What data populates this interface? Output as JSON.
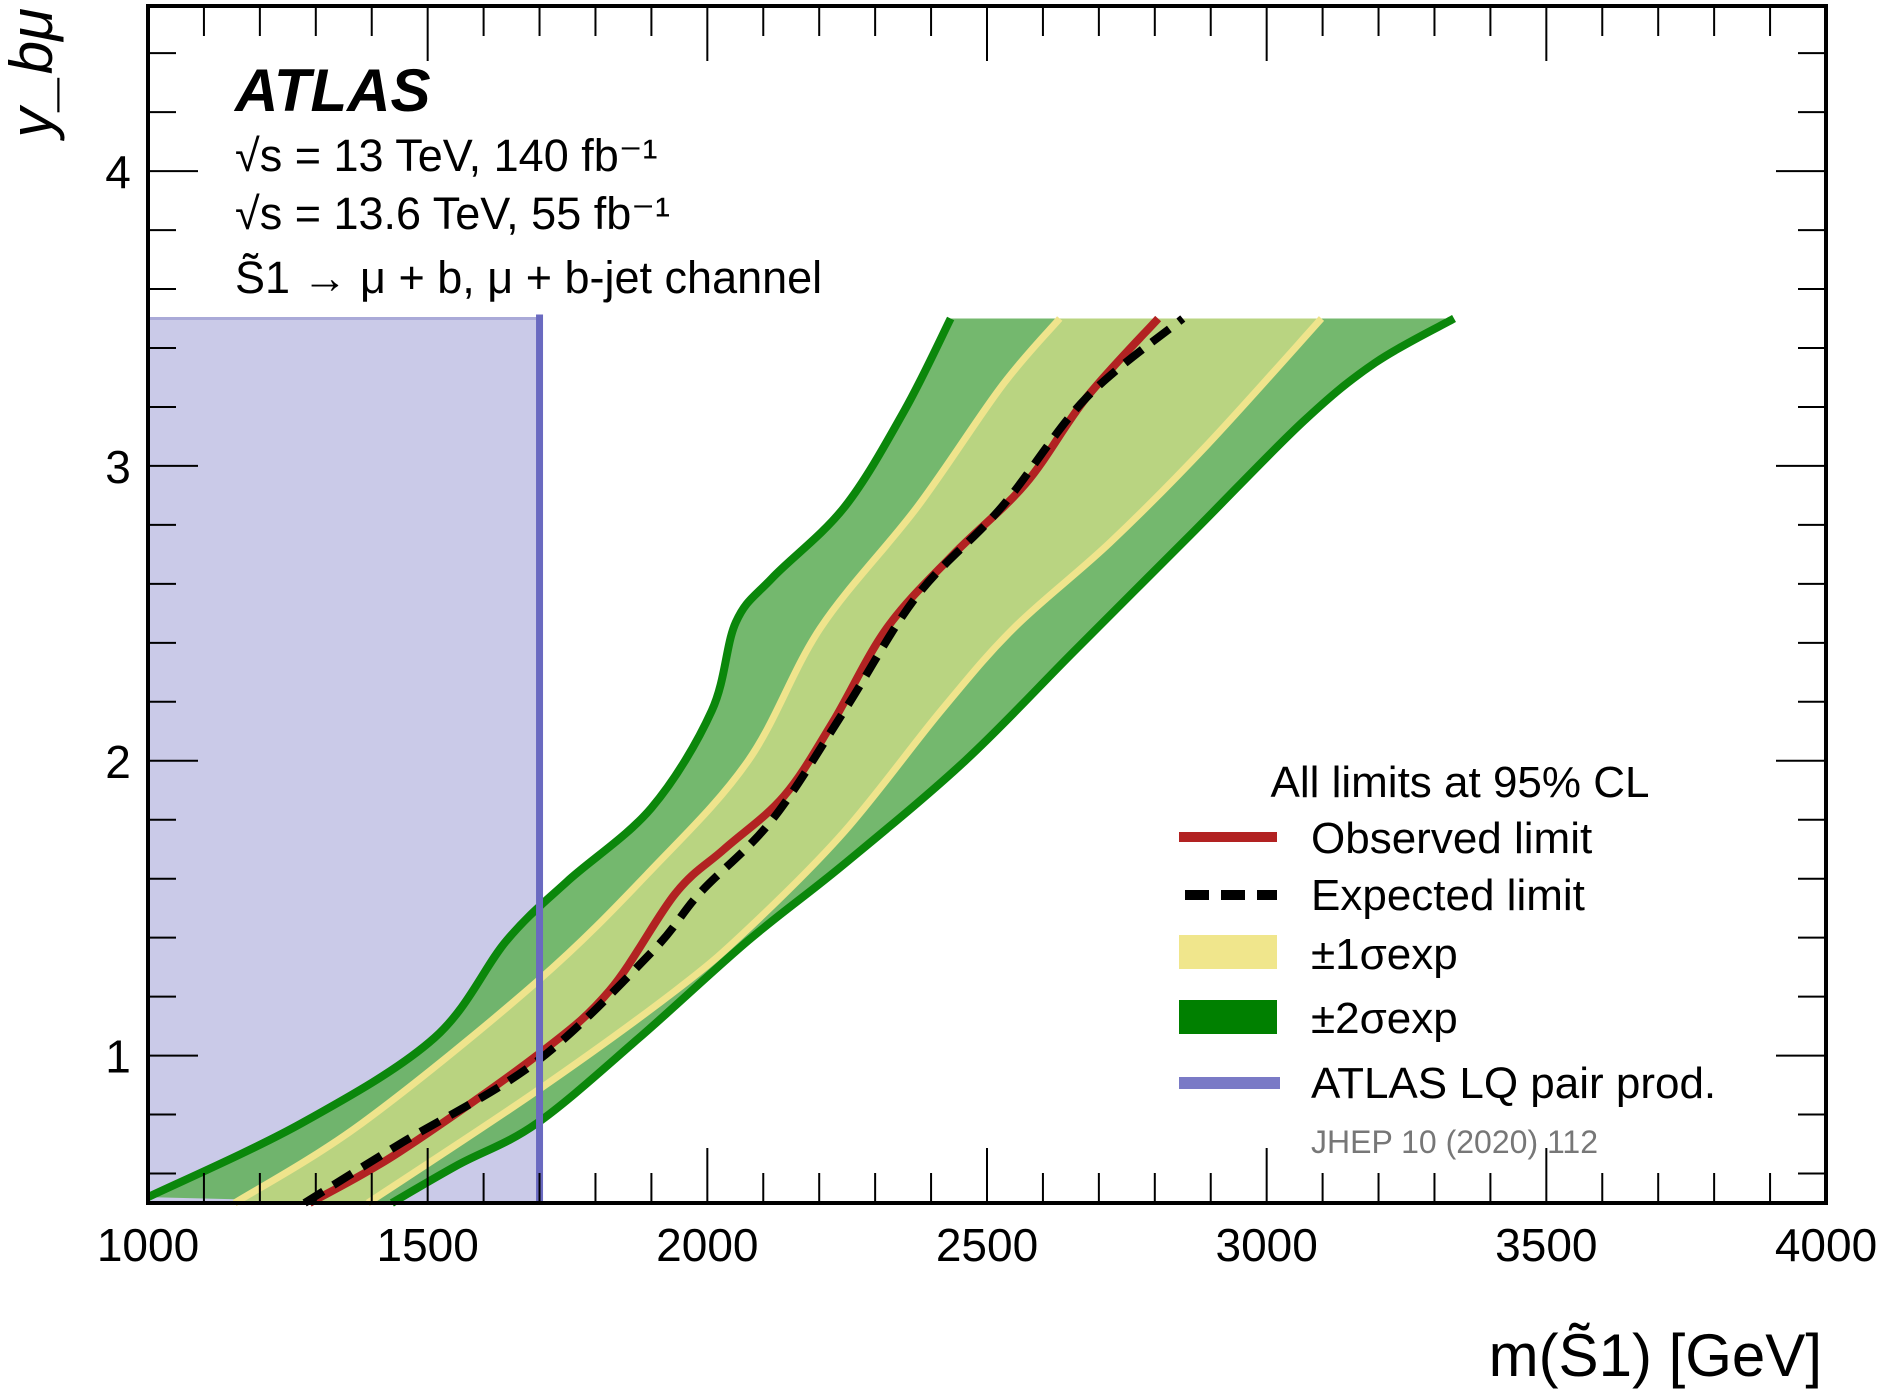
{
  "chart_data": {
    "type": "line",
    "xlabel": "m(S̃1) [GeV]",
    "ylabel": "y_bμ",
    "xlim": [
      1000,
      4000
    ],
    "ylim": [
      0.5,
      4.56
    ],
    "x_ticks": [
      "1000",
      "1500",
      "2000",
      "2500",
      "3000",
      "3500",
      "4000"
    ],
    "y_ticks": [
      "1",
      "2",
      "3",
      "4"
    ],
    "grid": false,
    "legend_placement": "bottom-right",
    "annotations": {
      "experiment": "ATLAS",
      "line1": "√s = 13 TeV, 140 fb⁻¹",
      "line2": "√s = 13.6 TeV, 55 fb⁻¹",
      "line3": "S̃1 → μ + b, μ + b-jet channel"
    },
    "legend": {
      "title": "All limits at 95% CL",
      "observed": "Observed limit",
      "expected": "Expected limit",
      "sigma1": "±1σexp",
      "sigma2": "±2σexp",
      "lq": "ATLAS LQ pair prod.",
      "reference": "JHEP 10 (2020) 112"
    },
    "colors": {
      "observed": "#b22222",
      "expected": "#000000",
      "sigma1_fill": "#bdd582",
      "sigma1_edge": "#efe48c",
      "sigma1_legend": "#f0e68c",
      "sigma2_fill": "#68b262",
      "sigma2_edge": "#0b870b",
      "sigma2_legend": "#008000",
      "lq_fill": "#cacae8",
      "lq_edge": "#6a6ac0"
    },
    "series": {
      "observed": [
        [
          1289,
          0.5
        ],
        [
          1447,
          0.67
        ],
        [
          1695,
          1.0
        ],
        [
          1825,
          1.22
        ],
        [
          1943,
          1.55
        ],
        [
          2030,
          1.7
        ],
        [
          2137,
          1.88
        ],
        [
          2224,
          2.13
        ],
        [
          2321,
          2.45
        ],
        [
          2440,
          2.7
        ],
        [
          2569,
          2.94
        ],
        [
          2677,
          3.23
        ],
        [
          2806,
          3.5
        ]
      ],
      "expected": [
        [
          1280,
          0.5
        ],
        [
          1450,
          0.7
        ],
        [
          1695,
          0.98
        ],
        [
          1900,
          1.35
        ],
        [
          1986,
          1.55
        ],
        [
          2116,
          1.8
        ],
        [
          2245,
          2.17
        ],
        [
          2375,
          2.56
        ],
        [
          2526,
          2.86
        ],
        [
          2677,
          3.23
        ],
        [
          2850,
          3.5
        ]
      ],
      "sigma1_low": [
        [
          1155,
          0.5
        ],
        [
          1382,
          0.77
        ],
        [
          1695,
          1.25
        ],
        [
          1900,
          1.63
        ],
        [
          2073,
          2.0
        ],
        [
          2202,
          2.45
        ],
        [
          2375,
          2.86
        ],
        [
          2526,
          3.27
        ],
        [
          2630,
          3.5
        ]
      ],
      "sigma1_high": [
        [
          1393,
          0.5
        ],
        [
          1695,
          0.88
        ],
        [
          1943,
          1.22
        ],
        [
          2073,
          1.43
        ],
        [
          2245,
          1.76
        ],
        [
          2418,
          2.17
        ],
        [
          2548,
          2.45
        ],
        [
          2720,
          2.74
        ],
        [
          2893,
          3.07
        ],
        [
          3098,
          3.5
        ]
      ],
      "sigma2_low": [
        [
          1000,
          0.52
        ],
        [
          1274,
          0.77
        ],
        [
          1512,
          1.06
        ],
        [
          1641,
          1.39
        ],
        [
          1749,
          1.59
        ],
        [
          1900,
          1.84
        ],
        [
          2008,
          2.17
        ],
        [
          2051,
          2.47
        ],
        [
          2116,
          2.62
        ],
        [
          2245,
          2.86
        ],
        [
          2353,
          3.19
        ],
        [
          2435,
          3.5
        ]
      ],
      "sigma2_high": [
        [
          1436,
          0.5
        ],
        [
          1555,
          0.63
        ],
        [
          1695,
          0.77
        ],
        [
          1878,
          1.06
        ],
        [
          2073,
          1.39
        ],
        [
          2245,
          1.65
        ],
        [
          2461,
          2.0
        ],
        [
          2655,
          2.37
        ],
        [
          2871,
          2.78
        ],
        [
          3065,
          3.15
        ],
        [
          3194,
          3.35
        ],
        [
          3335,
          3.5
        ]
      ],
      "lq_excluded": {
        "mass_limit": 1700,
        "y_range": [
          0.5,
          3.5
        ]
      }
    }
  }
}
